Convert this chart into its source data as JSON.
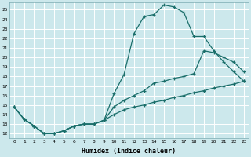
{
  "xlabel": "Humidex (Indice chaleur)",
  "background_color": "#cce8ec",
  "grid_color": "#b0d0d8",
  "line_color": "#1a6e6a",
  "xlim": [
    -0.5,
    23.5
  ],
  "ylim": [
    11.5,
    25.8
  ],
  "xticks": [
    0,
    1,
    2,
    3,
    4,
    5,
    6,
    7,
    8,
    9,
    10,
    11,
    12,
    13,
    14,
    15,
    16,
    17,
    18,
    19,
    20,
    21,
    22,
    23
  ],
  "yticks": [
    12,
    13,
    14,
    15,
    16,
    17,
    18,
    19,
    20,
    21,
    22,
    23,
    24,
    25
  ],
  "line1_x": [
    0,
    1,
    2,
    3,
    4,
    5,
    6,
    7,
    8,
    9,
    10,
    11,
    12,
    13,
    14,
    15,
    16,
    17,
    18,
    19,
    20,
    21,
    22,
    23
  ],
  "line1_y": [
    14.8,
    13.5,
    12.8,
    12.0,
    12.0,
    12.3,
    12.8,
    13.0,
    13.0,
    13.4,
    16.2,
    18.2,
    22.5,
    24.3,
    24.5,
    25.5,
    25.3,
    24.7,
    22.2,
    22.2,
    20.7,
    19.5,
    18.5,
    17.5
  ],
  "line2_x": [
    0,
    1,
    2,
    3,
    4,
    5,
    6,
    7,
    8,
    9,
    10,
    11,
    12,
    13,
    14,
    15,
    16,
    17,
    18,
    19,
    20,
    21,
    22,
    23
  ],
  "line2_y": [
    14.8,
    13.5,
    12.8,
    12.0,
    12.0,
    12.3,
    12.8,
    13.0,
    13.0,
    13.4,
    14.0,
    14.5,
    14.8,
    15.0,
    15.3,
    15.5,
    15.8,
    16.0,
    16.3,
    16.5,
    16.8,
    17.0,
    17.2,
    17.5
  ],
  "line3_x": [
    0,
    1,
    2,
    3,
    4,
    5,
    6,
    7,
    8,
    9,
    10,
    11,
    12,
    13,
    14,
    15,
    16,
    17,
    18,
    19,
    20,
    21,
    22,
    23
  ],
  "line3_y": [
    14.8,
    13.5,
    12.8,
    12.0,
    12.0,
    12.3,
    12.8,
    13.0,
    13.0,
    13.4,
    14.8,
    15.5,
    16.0,
    16.5,
    17.3,
    17.5,
    17.8,
    18.0,
    18.3,
    20.7,
    20.5,
    20.0,
    19.5,
    18.5
  ]
}
